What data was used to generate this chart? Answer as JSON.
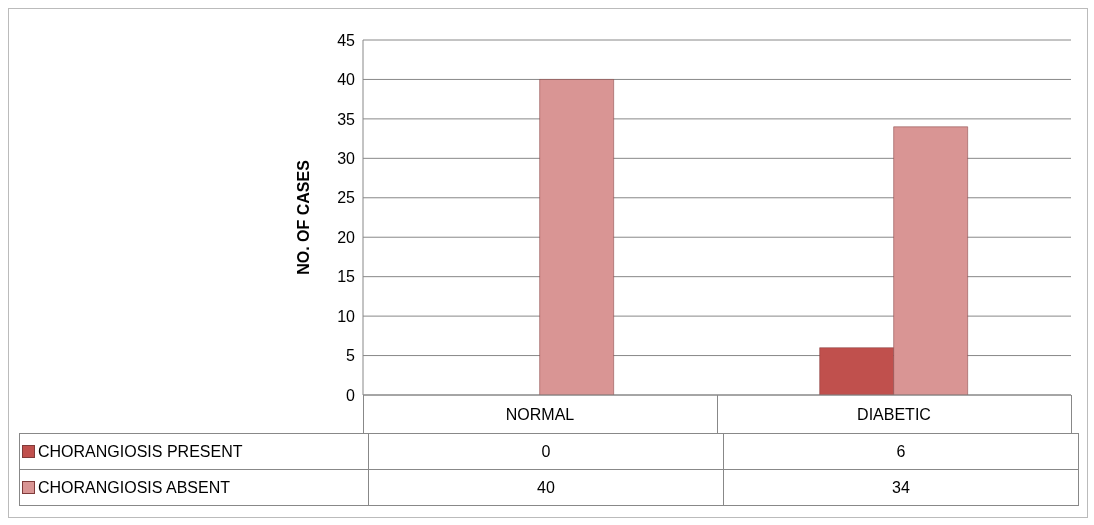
{
  "chart_data": {
    "type": "bar",
    "ylabel": "NO. OF CASES",
    "categories": [
      "NORMAL",
      "DIABETIC"
    ],
    "series": [
      {
        "name": "CHORANGIOSIS PRESENT",
        "color": "#c0504d",
        "values": [
          0,
          6
        ]
      },
      {
        "name": "CHORANGIOSIS ABSENT",
        "color": "#d99594",
        "values": [
          40,
          34
        ]
      }
    ],
    "ylim": [
      0,
      45
    ],
    "yticks": [
      0,
      5,
      10,
      15,
      20,
      25,
      30,
      35,
      40,
      45
    ],
    "grid": "y",
    "legend": "bottom",
    "data_labels": true
  }
}
